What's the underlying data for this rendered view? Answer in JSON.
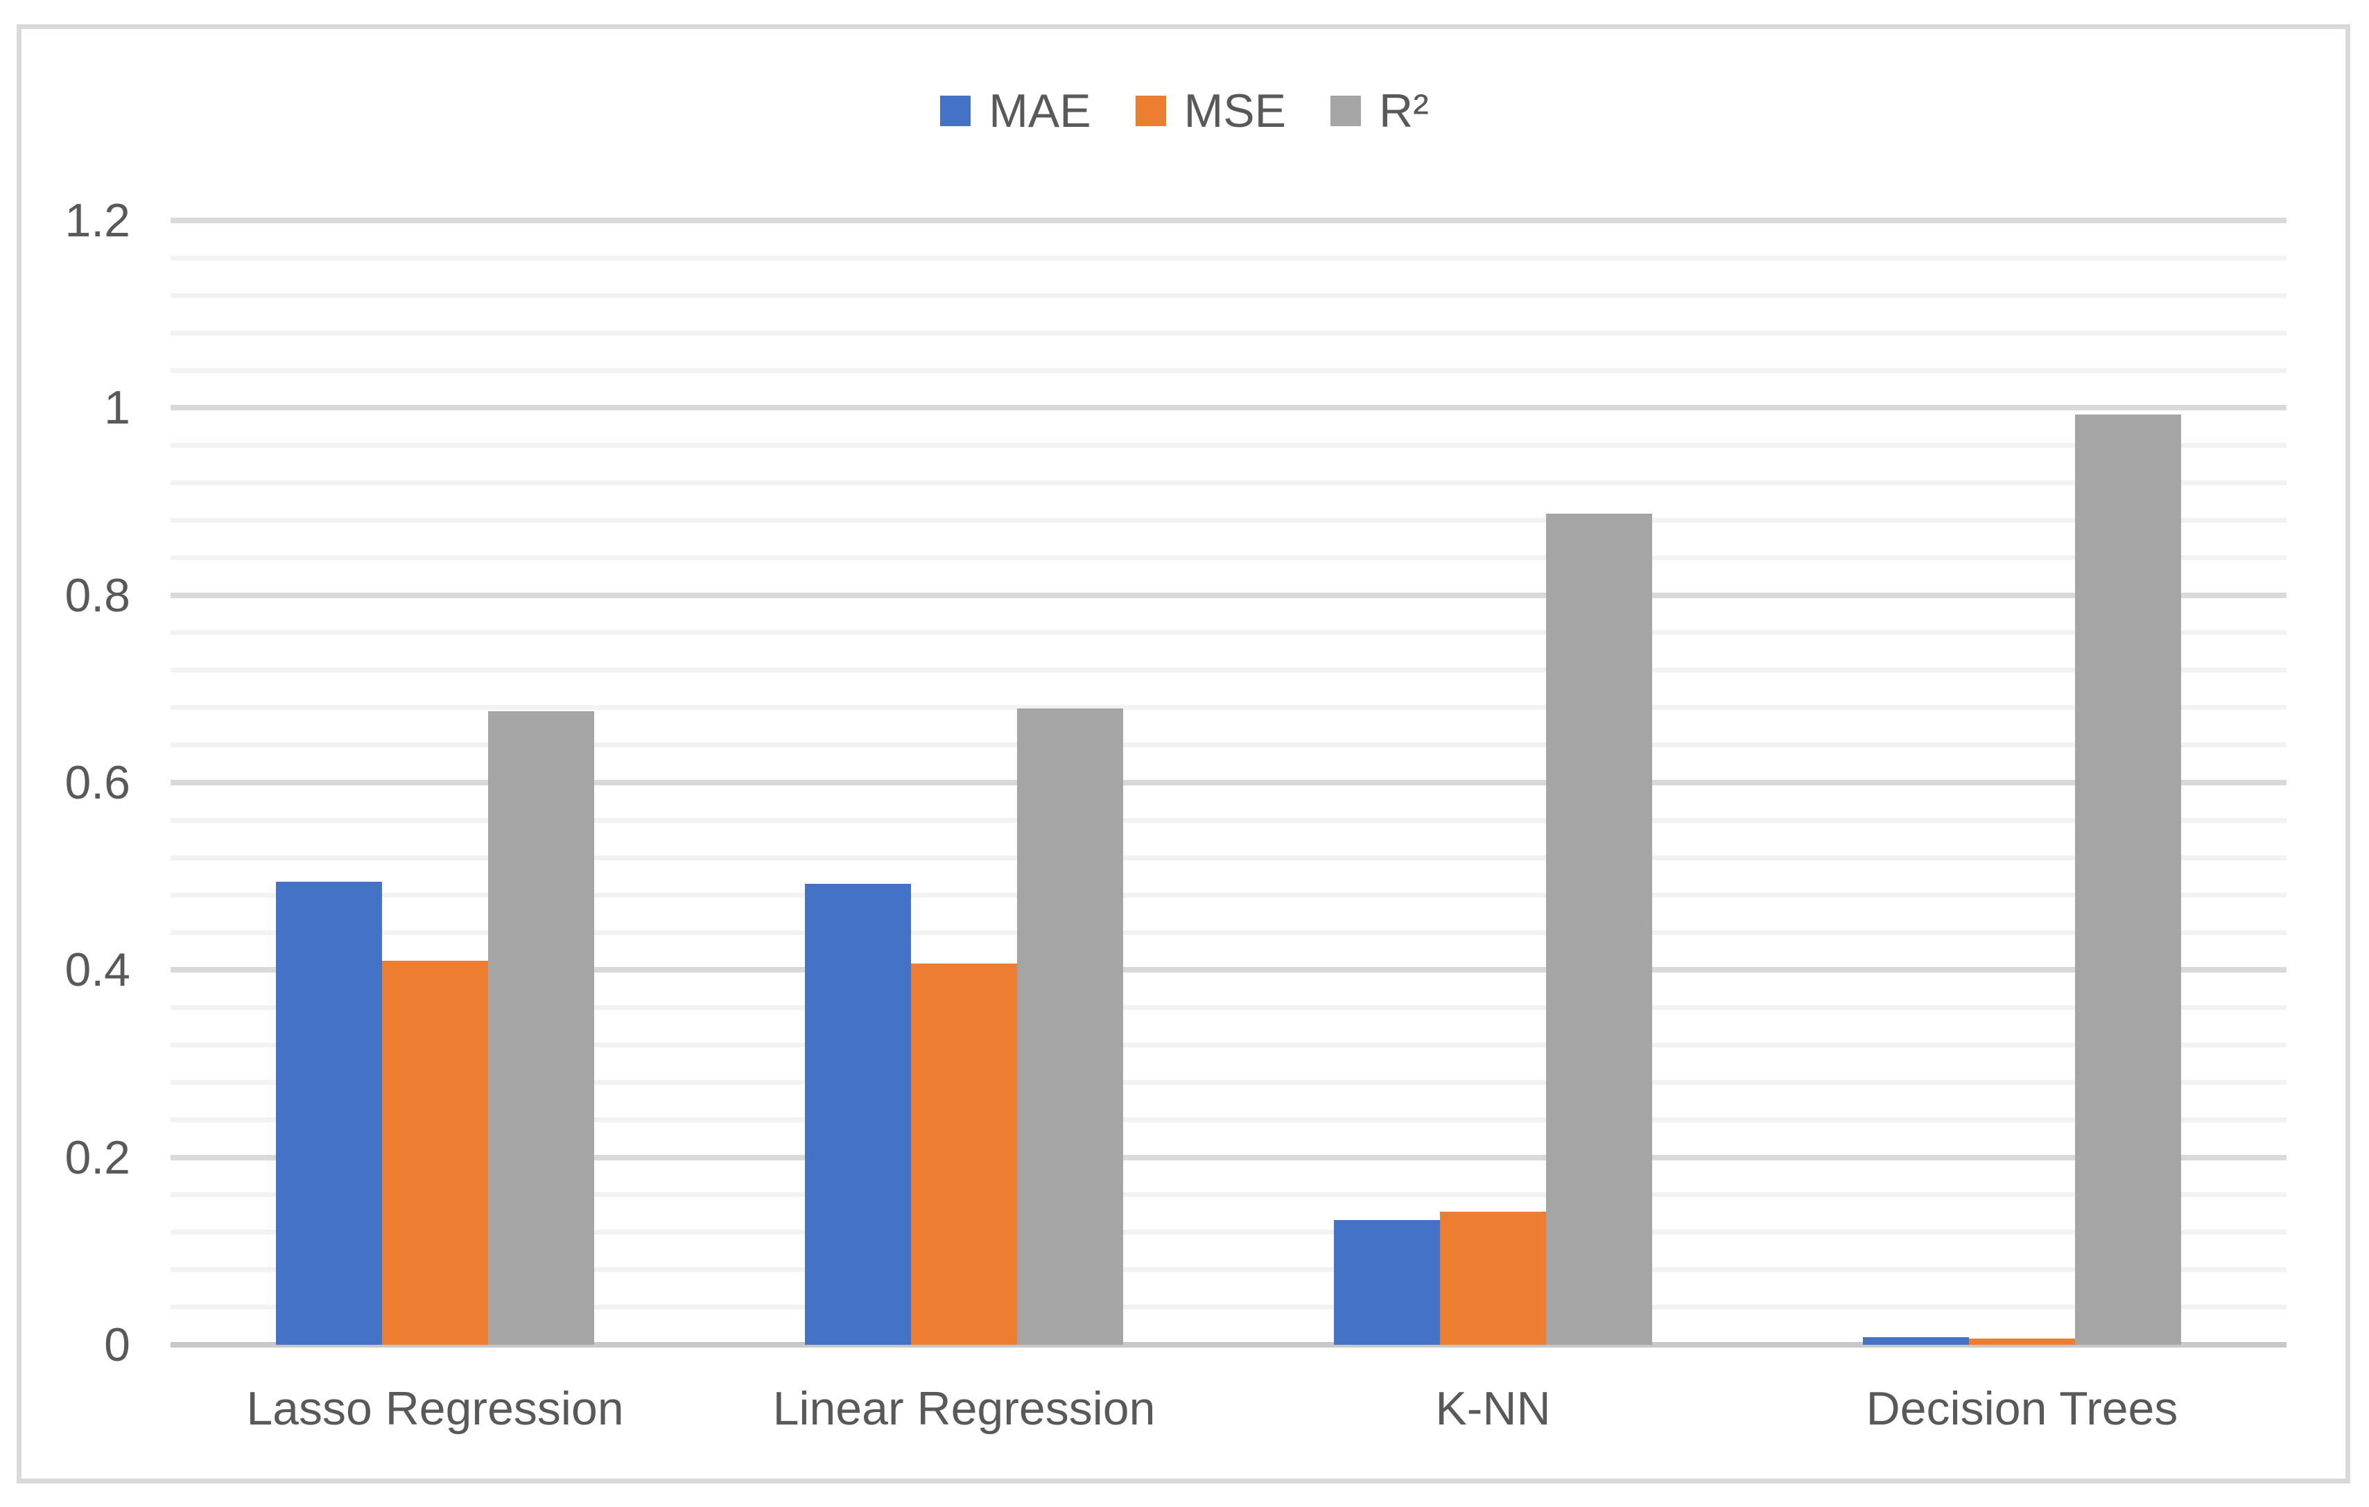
{
  "chart_data": {
    "type": "bar",
    "title": "",
    "xlabel": "",
    "ylabel": "",
    "categories": [
      "Lasso Regression",
      "Linear Regression",
      "K-NN",
      "Decision Trees"
    ],
    "series": [
      {
        "name": "MAE",
        "color": "#4472C4",
        "values": [
          0.494,
          0.492,
          0.133,
          0.008
        ]
      },
      {
        "name": "MSE",
        "color": "#ED7D31",
        "values": [
          0.41,
          0.407,
          0.142,
          0.007
        ]
      },
      {
        "name": "R²",
        "color": "#A5A5A5",
        "values": [
          0.676,
          0.679,
          0.887,
          0.993
        ]
      }
    ],
    "ylim": [
      0,
      1.2
    ],
    "y_major_step": 0.2,
    "y_minor_step": 0.04,
    "y_tick_labels": [
      "0",
      "0.2",
      "0.4",
      "0.6",
      "0.8",
      "1",
      "1.2"
    ],
    "legend_position": "top-center",
    "grid": "horizontal, major and minor lines, no vertical axis line"
  },
  "colors": {
    "background": "#FFFFFF",
    "frame_border": "#D9D9D9",
    "gridline_major": "#D9D9D9",
    "gridline_minor": "#F2F2F2",
    "axis_line": "#C8C8C8",
    "text": "#595959"
  }
}
